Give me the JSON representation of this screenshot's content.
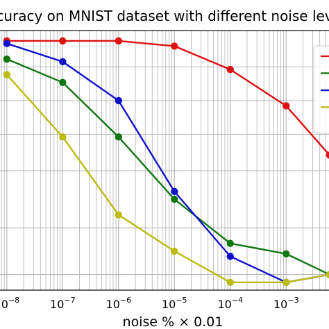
{
  "chart_data": {
    "type": "line",
    "title": "curacy on MNIST dataset with different noise lev",
    "xlabel": "noise % × 0.01",
    "ylabel": "",
    "x_scale": "log",
    "x_tick_values": [
      1e-08,
      1e-07,
      1e-06,
      1e-05,
      0.0001,
      0.001
    ],
    "x_tick_labels": [
      {
        "base": "10",
        "exp": "−8"
      },
      {
        "base": "10",
        "exp": "−7"
      },
      {
        "base": "10",
        "exp": "−6"
      },
      {
        "base": "10",
        "exp": "−5"
      },
      {
        "base": "10",
        "exp": "−4"
      },
      {
        "base": "10",
        "exp": "−3"
      }
    ],
    "xlim": [
      6e-09,
      0.0062
    ],
    "ylim": [
      0,
      1
    ],
    "y_tick_labels_visible": false,
    "grid": true,
    "legend_position": "top-right",
    "series": [
      {
        "color": "#dd1111",
        "x": [
          1e-08,
          1e-07,
          1e-06,
          1e-05,
          0.0001,
          0.001,
          0.006
        ],
        "values": [
          0.96,
          0.96,
          0.96,
          0.94,
          0.85,
          0.71,
          0.52
        ]
      },
      {
        "color": "#117711",
        "x": [
          1e-08,
          1e-07,
          1e-06,
          1e-05,
          0.0001,
          0.001,
          0.006
        ],
        "values": [
          0.89,
          0.8,
          0.59,
          0.35,
          0.18,
          0.14,
          0.06
        ]
      },
      {
        "color": "#1111cc",
        "x": [
          1e-08,
          1e-07,
          1e-06,
          1e-05,
          0.0001,
          0.001,
          0.006
        ],
        "values": [
          0.95,
          0.88,
          0.73,
          0.38,
          0.13,
          0.03,
          0.06
        ]
      },
      {
        "color": "#bbbb11",
        "x": [
          1e-08,
          1e-07,
          1e-06,
          1e-05,
          0.0001,
          0.001,
          0.006
        ],
        "values": [
          0.83,
          0.59,
          0.29,
          0.15,
          0.03,
          0.03,
          0.06
        ]
      }
    ]
  }
}
